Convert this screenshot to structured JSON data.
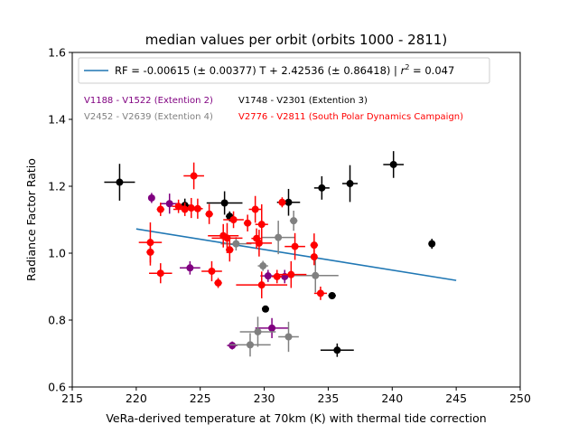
{
  "chart_data": {
    "type": "scatter",
    "title": "median values per orbit (orbits 1000 - 2811)",
    "xlabel": "VeRa-derived temperature at 70km (K) with thermal tide correction",
    "ylabel": "Radiance Factor Ratio",
    "xlim": [
      215,
      250
    ],
    "ylim": [
      0.6,
      1.6
    ],
    "xticks": [
      "215",
      "220",
      "225",
      "230",
      "235",
      "240",
      "245",
      "250"
    ],
    "yticks": [
      "0.6",
      "0.8",
      "1.0",
      "1.2",
      "1.4",
      "1.6"
    ],
    "xtick_values": [
      215,
      220,
      225,
      230,
      235,
      240,
      245,
      250
    ],
    "ytick_values": [
      0.6,
      0.8,
      1.0,
      1.2,
      1.4,
      1.6
    ],
    "legend_position": "upper center",
    "fit": {
      "label_prefix": "RF = -0.00615 (± 0.00377) T + 2.42536 (± 0.86418) | ",
      "label_r2": "r",
      "label_r2_sup": "2",
      "label_r2_suffix": " = 0.047",
      "slope": -0.00615,
      "intercept": 2.42536,
      "x": [
        220,
        245
      ],
      "color": "#1f77b4"
    },
    "series": [
      {
        "name": "V1188 - V1522 (Extention 2)",
        "color": "#800080",
        "points": [
          {
            "x": 221.2,
            "y": 1.165,
            "xerr": 0.0,
            "yerr": 0.015
          },
          {
            "x": 222.6,
            "y": 1.148,
            "xerr": 0.7,
            "yerr": 0.03
          },
          {
            "x": 224.2,
            "y": 0.956,
            "xerr": 0.8,
            "yerr": 0.02
          },
          {
            "x": 227.5,
            "y": 0.724,
            "xerr": 0.4,
            "yerr": 0.012
          },
          {
            "x": 230.3,
            "y": 0.932,
            "xerr": 0.6,
            "yerr": 0.018
          },
          {
            "x": 230.6,
            "y": 0.776,
            "xerr": 1.3,
            "yerr": 0.03
          },
          {
            "x": 231.6,
            "y": 0.93,
            "xerr": 0.7,
            "yerr": 0.02
          }
        ]
      },
      {
        "name": "V1748 - V2301 (Extention 3)",
        "color": "#000000",
        "points": [
          {
            "x": 218.7,
            "y": 1.212,
            "xerr": 1.2,
            "yerr": 0.055
          },
          {
            "x": 223.8,
            "y": 1.143,
            "xerr": 0.6,
            "yerr": 0.02
          },
          {
            "x": 226.9,
            "y": 1.15,
            "xerr": 1.4,
            "yerr": 0.035
          },
          {
            "x": 227.3,
            "y": 1.11,
            "xerr": 0.3,
            "yerr": 0.015
          },
          {
            "x": 230.1,
            "y": 0.833,
            "xerr": 0.0,
            "yerr": 0.008
          },
          {
            "x": 231.9,
            "y": 1.152,
            "xerr": 0.9,
            "yerr": 0.04
          },
          {
            "x": 234.5,
            "y": 1.195,
            "xerr": 0.6,
            "yerr": 0.035
          },
          {
            "x": 235.3,
            "y": 0.873,
            "xerr": 0.3,
            "yerr": 0.01
          },
          {
            "x": 235.7,
            "y": 0.71,
            "xerr": 1.3,
            "yerr": 0.02
          },
          {
            "x": 236.7,
            "y": 1.208,
            "xerr": 0.6,
            "yerr": 0.055
          },
          {
            "x": 240.1,
            "y": 1.265,
            "xerr": 0.8,
            "yerr": 0.04
          },
          {
            "x": 243.1,
            "y": 1.028,
            "xerr": 0.0,
            "yerr": 0.015
          }
        ]
      },
      {
        "name": "V2452 - V2639 (Extention 4)",
        "color": "#808080",
        "points": [
          {
            "x": 227.8,
            "y": 1.028,
            "xerr": 1.2,
            "yerr": 0.02
          },
          {
            "x": 228.9,
            "y": 0.726,
            "xerr": 1.6,
            "yerr": 0.035
          },
          {
            "x": 229.5,
            "y": 0.765,
            "xerr": 1.4,
            "yerr": 0.045
          },
          {
            "x": 229.9,
            "y": 0.962,
            "xerr": 0.4,
            "yerr": 0.015
          },
          {
            "x": 231.1,
            "y": 1.047,
            "xerr": 1.3,
            "yerr": 0.05
          },
          {
            "x": 231.9,
            "y": 0.75,
            "xerr": 0.8,
            "yerr": 0.045
          },
          {
            "x": 232.3,
            "y": 1.097,
            "xerr": 0.3,
            "yerr": 0.03
          },
          {
            "x": 234.0,
            "y": 0.933,
            "xerr": 1.8,
            "yerr": 0.05
          }
        ]
      },
      {
        "name": "V2776 - V2811 (South Polar Dynamics Campaign)",
        "color": "#ff0000",
        "points": [
          {
            "x": 221.1,
            "y": 1.032,
            "xerr": 0.9,
            "yerr": 0.06
          },
          {
            "x": 221.1,
            "y": 1.003,
            "xerr": 0.3,
            "yerr": 0.04
          },
          {
            "x": 221.9,
            "y": 1.131,
            "xerr": 0.3,
            "yerr": 0.02
          },
          {
            "x": 221.9,
            "y": 0.94,
            "xerr": 0.9,
            "yerr": 0.03
          },
          {
            "x": 223.3,
            "y": 1.14,
            "xerr": 0.5,
            "yerr": 0.02
          },
          {
            "x": 223.8,
            "y": 1.131,
            "xerr": 0.9,
            "yerr": 0.02
          },
          {
            "x": 224.3,
            "y": 1.135,
            "xerr": 0.5,
            "yerr": 0.03
          },
          {
            "x": 224.5,
            "y": 1.231,
            "xerr": 0.8,
            "yerr": 0.04
          },
          {
            "x": 224.8,
            "y": 1.133,
            "xerr": 0.4,
            "yerr": 0.03
          },
          {
            "x": 225.7,
            "y": 1.117,
            "xerr": 0.3,
            "yerr": 0.03
          },
          {
            "x": 225.9,
            "y": 0.946,
            "xerr": 0.8,
            "yerr": 0.03
          },
          {
            "x": 226.4,
            "y": 0.911,
            "xerr": 0.3,
            "yerr": 0.015
          },
          {
            "x": 226.8,
            "y": 1.052,
            "xerr": 1.2,
            "yerr": 0.035
          },
          {
            "x": 227.1,
            "y": 1.045,
            "xerr": 1.2,
            "yerr": 0.045
          },
          {
            "x": 227.3,
            "y": 1.01,
            "xerr": 0.3,
            "yerr": 0.035
          },
          {
            "x": 227.6,
            "y": 1.1,
            "xerr": 0.8,
            "yerr": 0.025
          },
          {
            "x": 228.7,
            "y": 1.09,
            "xerr": 0.3,
            "yerr": 0.025
          },
          {
            "x": 229.3,
            "y": 1.131,
            "xerr": 0.5,
            "yerr": 0.04
          },
          {
            "x": 229.4,
            "y": 1.044,
            "xerr": 0.4,
            "yerr": 0.03
          },
          {
            "x": 229.6,
            "y": 1.03,
            "xerr": 1.0,
            "yerr": 0.04
          },
          {
            "x": 229.8,
            "y": 1.086,
            "xerr": 0.5,
            "yerr": 0.06
          },
          {
            "x": 229.8,
            "y": 0.905,
            "xerr": 2.0,
            "yerr": 0.04
          },
          {
            "x": 231.0,
            "y": 0.93,
            "xerr": 0.4,
            "yerr": 0.02
          },
          {
            "x": 231.4,
            "y": 1.152,
            "xerr": 0.3,
            "yerr": 0.015
          },
          {
            "x": 232.1,
            "y": 0.936,
            "xerr": 1.2,
            "yerr": 0.04
          },
          {
            "x": 232.4,
            "y": 1.02,
            "xerr": 0.8,
            "yerr": 0.04
          },
          {
            "x": 233.9,
            "y": 1.024,
            "xerr": 0.3,
            "yerr": 0.035
          },
          {
            "x": 233.9,
            "y": 0.989,
            "xerr": 0.2,
            "yerr": 0.025
          },
          {
            "x": 234.4,
            "y": 0.88,
            "xerr": 0.5,
            "yerr": 0.02
          }
        ]
      }
    ]
  }
}
